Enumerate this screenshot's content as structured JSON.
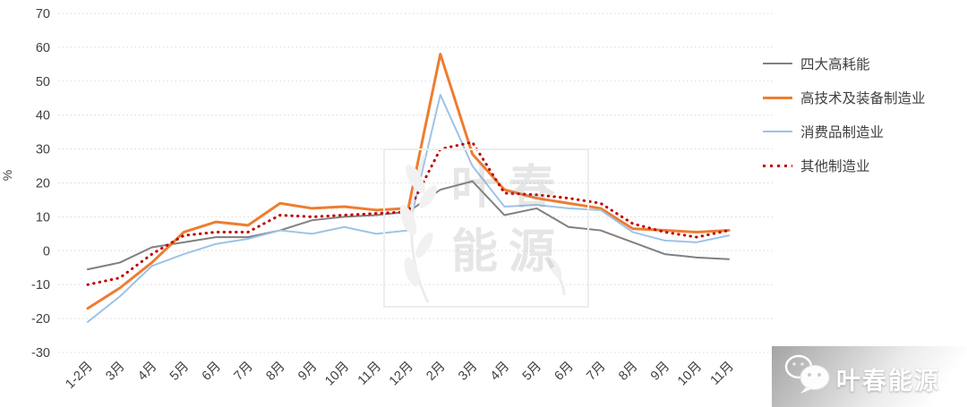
{
  "chart_data": {
    "type": "line",
    "title": "",
    "xlabel": "",
    "ylabel": "%",
    "ylim": [
      -30,
      70
    ],
    "ytick_step": 10,
    "grid": "horizontal-dotted",
    "legend_position": "right",
    "categories": [
      "1-2月",
      "3月",
      "4月",
      "5月",
      "6月",
      "7月",
      "8月",
      "9月",
      "10月",
      "11月",
      "12月",
      "2月",
      "3月",
      "4月",
      "5月",
      "6月",
      "7月",
      "8月",
      "9月",
      "10月",
      "11月"
    ],
    "series": [
      {
        "name": "四大高耗能",
        "color": "#808080",
        "style": "solid",
        "width": 2,
        "values": [
          -5.5,
          -3.5,
          1,
          2.5,
          4,
          4,
          6,
          9,
          10,
          10.5,
          11.5,
          18,
          20.5,
          10.5,
          12.5,
          7,
          6,
          2.5,
          -1,
          -2,
          -2.5
        ]
      },
      {
        "name": "高技术及装备制造业",
        "color": "#ED7D31",
        "style": "solid",
        "width": 3,
        "values": [
          -17,
          -11,
          -3.5,
          5.5,
          8.5,
          7.5,
          14,
          12.5,
          13,
          12,
          12.5,
          58,
          28.5,
          18,
          15.5,
          14,
          12.5,
          6.5,
          6,
          5.5,
          6
        ]
      },
      {
        "name": "消费品制造业",
        "color": "#9DC3E6",
        "style": "solid",
        "width": 2,
        "values": [
          -21,
          -13.5,
          -4.5,
          -1,
          2,
          3.5,
          6,
          5,
          7,
          5,
          6,
          46,
          25,
          13,
          13.5,
          12.5,
          12,
          5.5,
          3,
          2.5,
          4.5
        ]
      },
      {
        "name": "其他制造业",
        "color": "#C00000",
        "style": "dotted",
        "width": 3,
        "values": [
          -10,
          -8,
          -1,
          4.5,
          5.5,
          5.5,
          10.5,
          10,
          10.5,
          11,
          11.5,
          30,
          32,
          17,
          16.5,
          15.5,
          14,
          8,
          5.5,
          4,
          6
        ]
      }
    ]
  },
  "watermark": {
    "line1": "叶春",
    "line2": "能源"
  },
  "logo": {
    "text": "叶春能源"
  }
}
